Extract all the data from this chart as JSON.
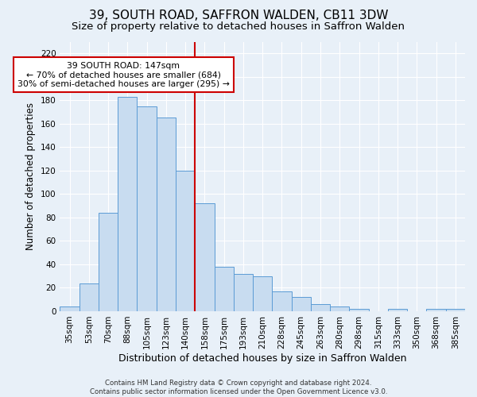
{
  "title": "39, SOUTH ROAD, SAFFRON WALDEN, CB11 3DW",
  "subtitle": "Size of property relative to detached houses in Saffron Walden",
  "xlabel": "Distribution of detached houses by size in Saffron Walden",
  "ylabel": "Number of detached properties",
  "categories": [
    "35sqm",
    "53sqm",
    "70sqm",
    "88sqm",
    "105sqm",
    "123sqm",
    "140sqm",
    "158sqm",
    "175sqm",
    "193sqm",
    "210sqm",
    "228sqm",
    "245sqm",
    "263sqm",
    "280sqm",
    "298sqm",
    "315sqm",
    "333sqm",
    "350sqm",
    "368sqm",
    "385sqm"
  ],
  "values": [
    4,
    24,
    84,
    183,
    175,
    165,
    120,
    92,
    38,
    32,
    30,
    17,
    12,
    6,
    4,
    2,
    0,
    2,
    0,
    2,
    2
  ],
  "bar_color": "#c8dcf0",
  "bar_edge_color": "#5b9bd5",
  "reference_line_x": 6.5,
  "ref_line_color": "#cc0000",
  "annotation_text": "39 SOUTH ROAD: 147sqm\n← 70% of detached houses are smaller (684)\n30% of semi-detached houses are larger (295) →",
  "annotation_box_color": "#ffffff",
  "annotation_box_edge_color": "#cc0000",
  "ylim": [
    0,
    230
  ],
  "yticks": [
    0,
    20,
    40,
    60,
    80,
    100,
    120,
    140,
    160,
    180,
    200,
    220
  ],
  "background_color": "#e8f0f8",
  "footer_line1": "Contains HM Land Registry data © Crown copyright and database right 2024.",
  "footer_line2": "Contains public sector information licensed under the Open Government Licence v3.0.",
  "title_fontsize": 11,
  "subtitle_fontsize": 9.5,
  "xlabel_fontsize": 9,
  "ylabel_fontsize": 8.5,
  "tick_fontsize": 7.5,
  "annotation_fontsize": 7.8,
  "footer_fontsize": 6.2
}
